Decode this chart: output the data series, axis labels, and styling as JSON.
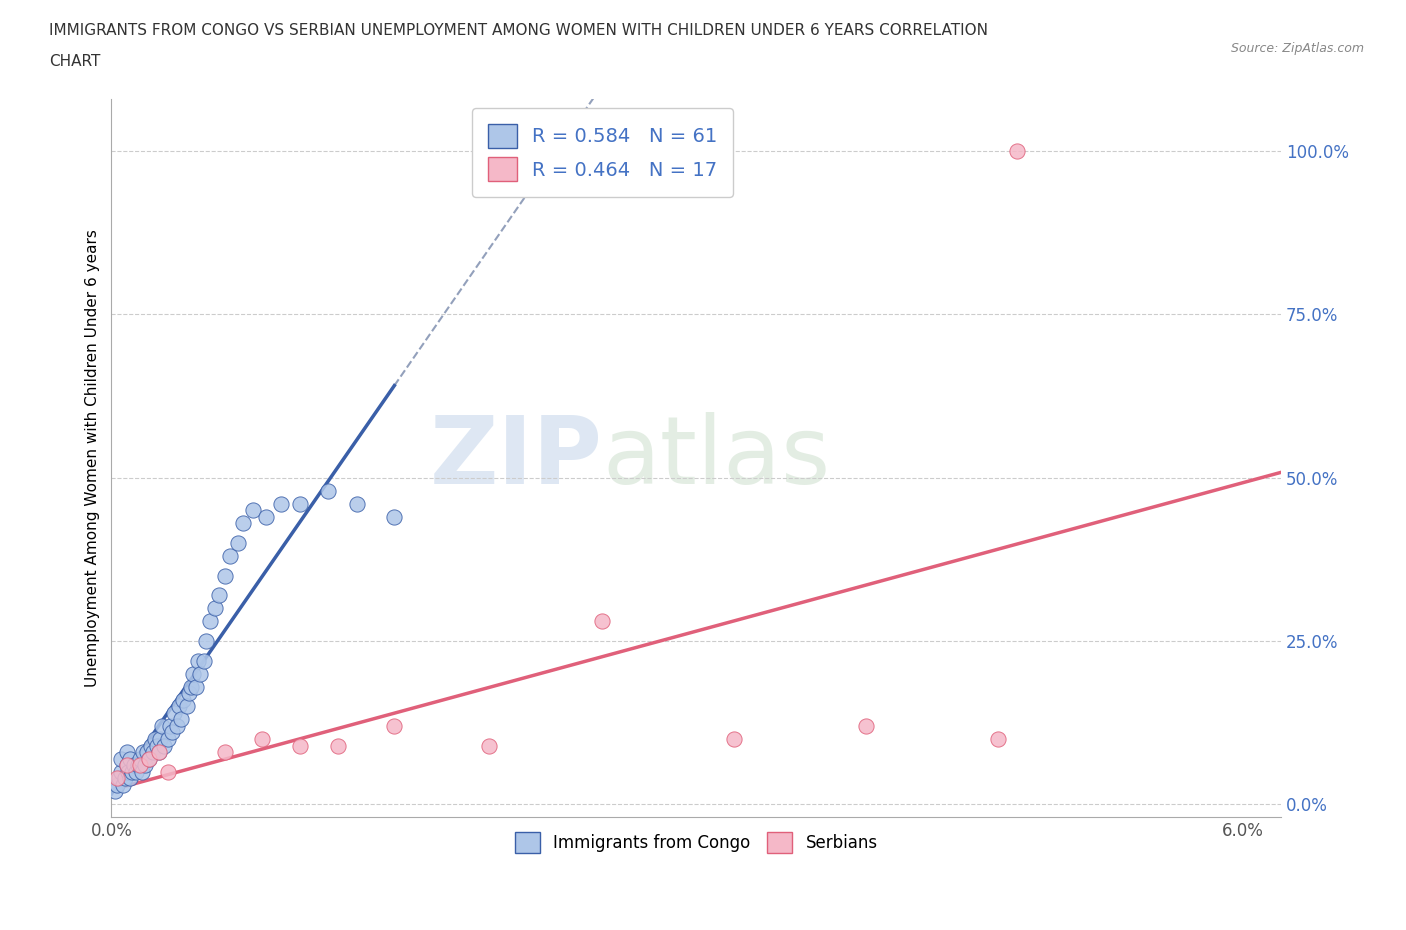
{
  "title_line1": "IMMIGRANTS FROM CONGO VS SERBIAN UNEMPLOYMENT AMONG WOMEN WITH CHILDREN UNDER 6 YEARS CORRELATION",
  "title_line2": "CHART",
  "source": "Source: ZipAtlas.com",
  "ylabel": "Unemployment Among Women with Children Under 6 years",
  "xlim": [
    0.0,
    0.062
  ],
  "ylim": [
    -0.02,
    1.08
  ],
  "yticks": [
    0.0,
    0.25,
    0.5,
    0.75,
    1.0
  ],
  "yticklabels": [
    "0.0%",
    "25.0%",
    "50.0%",
    "75.0%",
    "100.0%"
  ],
  "watermark_zip": "ZIP",
  "watermark_atlas": "atlas",
  "congo_color": "#aec6e8",
  "serbian_color": "#f5b8c8",
  "congo_line_color": "#3a5fa8",
  "serbian_line_color": "#e0607a",
  "congo_trend_color": "#7090c0",
  "congo_R": 0.584,
  "congo_N": 61,
  "serbian_R": 0.464,
  "serbian_N": 17,
  "background_color": "#ffffff",
  "grid_color": "#cccccc",
  "congo_scatter_x": [
    0.0002,
    0.0003,
    0.0004,
    0.0005,
    0.0005,
    0.0006,
    0.0007,
    0.0008,
    0.0008,
    0.0009,
    0.001,
    0.001,
    0.0011,
    0.0012,
    0.0013,
    0.0014,
    0.0015,
    0.0016,
    0.0017,
    0.0018,
    0.0019,
    0.002,
    0.0021,
    0.0022,
    0.0023,
    0.0024,
    0.0025,
    0.0026,
    0.0027,
    0.0028,
    0.003,
    0.0031,
    0.0032,
    0.0033,
    0.0035,
    0.0036,
    0.0037,
    0.0038,
    0.004,
    0.0041,
    0.0042,
    0.0043,
    0.0045,
    0.0046,
    0.0047,
    0.0049,
    0.005,
    0.0052,
    0.0055,
    0.0057,
    0.006,
    0.0063,
    0.0067,
    0.007,
    0.0075,
    0.0082,
    0.009,
    0.01,
    0.0115,
    0.013,
    0.015
  ],
  "congo_scatter_y": [
    0.02,
    0.03,
    0.04,
    0.05,
    0.07,
    0.03,
    0.04,
    0.06,
    0.08,
    0.05,
    0.04,
    0.07,
    0.05,
    0.06,
    0.05,
    0.06,
    0.07,
    0.05,
    0.08,
    0.06,
    0.08,
    0.07,
    0.09,
    0.08,
    0.1,
    0.09,
    0.08,
    0.1,
    0.12,
    0.09,
    0.1,
    0.12,
    0.11,
    0.14,
    0.12,
    0.15,
    0.13,
    0.16,
    0.15,
    0.17,
    0.18,
    0.2,
    0.18,
    0.22,
    0.2,
    0.22,
    0.25,
    0.28,
    0.3,
    0.32,
    0.35,
    0.38,
    0.4,
    0.43,
    0.45,
    0.44,
    0.46,
    0.46,
    0.48,
    0.46,
    0.44
  ],
  "serbian_scatter_x": [
    0.0003,
    0.0008,
    0.0015,
    0.002,
    0.0025,
    0.003,
    0.006,
    0.008,
    0.01,
    0.012,
    0.015,
    0.02,
    0.026,
    0.033,
    0.04,
    0.047,
    0.048
  ],
  "serbian_scatter_y": [
    0.04,
    0.06,
    0.06,
    0.07,
    0.08,
    0.05,
    0.08,
    0.1,
    0.09,
    0.09,
    0.12,
    0.09,
    0.28,
    0.1,
    0.12,
    0.1,
    1.0
  ]
}
